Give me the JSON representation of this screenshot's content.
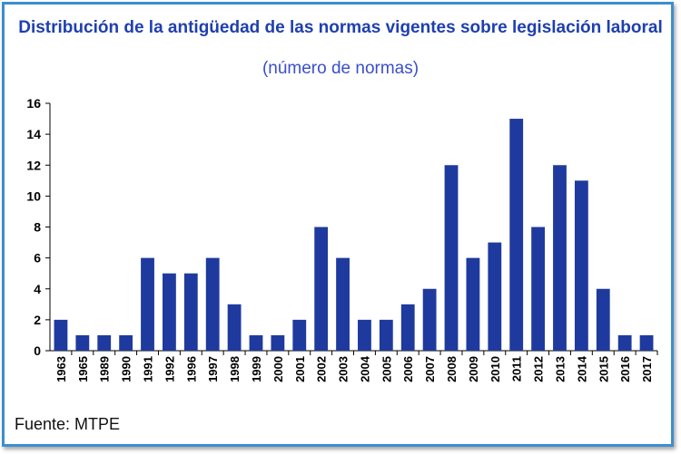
{
  "chart_data": {
    "type": "bar",
    "title": "Distribución de la antigüedad de las normas vigentes sobre legislación laboral",
    "subtitle": "(número de normas)",
    "xlabel": "",
    "ylabel": "",
    "ylim": [
      0,
      16
    ],
    "yticks": [
      0,
      2,
      4,
      6,
      8,
      10,
      12,
      14,
      16
    ],
    "grid": false,
    "legend": "none",
    "bar_color": "#1f3a9e",
    "categories": [
      "1963",
      "1965",
      "1989",
      "1990",
      "1991",
      "1992",
      "1996",
      "1997",
      "1998",
      "1999",
      "2000",
      "2001",
      "2002",
      "2003",
      "2004",
      "2005",
      "2006",
      "2007",
      "2008",
      "2009",
      "2010",
      "2011",
      "2012",
      "2013",
      "2014",
      "2015",
      "2016",
      "2017"
    ],
    "values": [
      2,
      1,
      1,
      1,
      6,
      5,
      5,
      6,
      3,
      1,
      1,
      2,
      8,
      6,
      2,
      2,
      3,
      4,
      12,
      6,
      7,
      15,
      8,
      12,
      11,
      4,
      1,
      1
    ]
  },
  "footer": {
    "source": "Fuente: MTPE"
  },
  "colors": {
    "frame": "#3b8fcf",
    "title": "#1f3fb0",
    "subtitle": "#3a4fc9"
  }
}
